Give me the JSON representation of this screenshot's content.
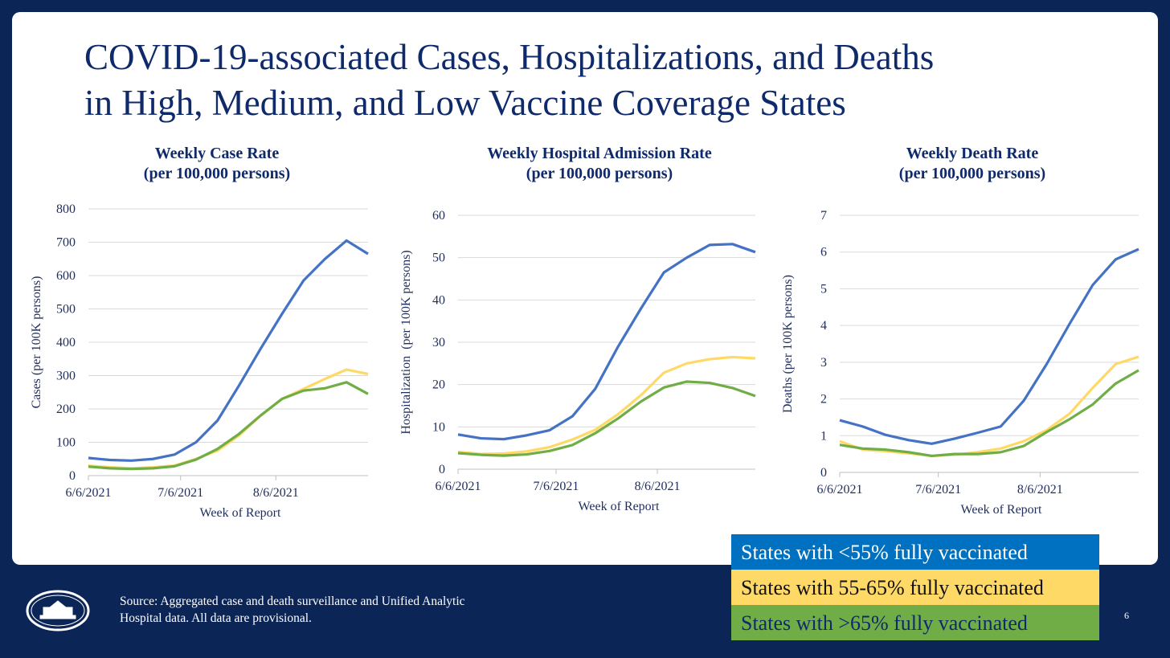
{
  "title": [
    "COVID-19-associated Cases, Hospitalizations, and Deaths",
    "in High, Medium, and Low Vaccine Coverage States"
  ],
  "source": [
    "Source: Aggregated case and death surveillance and Unified Analytic",
    "Hospital data. All data are provisional."
  ],
  "page_number": "6",
  "legend_colors": [
    "#0070c0",
    "#ffd966",
    "#70ad47"
  ],
  "chart_data": [
    {
      "type": "line",
      "title": [
        "Weekly Case Rate",
        "(per 100,000 persons)"
      ],
      "x_label": "Week of Report",
      "y_label": "Cases (per 100K persons)",
      "x": [
        "2021-06-06",
        "2021-06-13",
        "2021-06-20",
        "2021-06-27",
        "2021-07-04",
        "2021-07-11",
        "2021-07-18",
        "2021-07-25",
        "2021-08-01",
        "2021-08-08",
        "2021-08-15",
        "2021-08-22",
        "2021-08-29",
        "2021-09-05"
      ],
      "xlim": [
        "2021-06-06",
        "2021-09-05"
      ],
      "xticks": [
        {
          "value": "2021-06-06",
          "label": "6/6/2021"
        },
        {
          "value": "2021-07-06",
          "label": "7/6/2021"
        },
        {
          "value": "2021-08-06",
          "label": "8/6/2021"
        }
      ],
      "ylim": [
        0,
        800
      ],
      "yticks": [
        0,
        100,
        200,
        300,
        400,
        500,
        600,
        700,
        800
      ],
      "grid": true,
      "series": [
        {
          "name": "States with <55% fully vaccinated",
          "color": "#4472c4",
          "values": [
            53,
            47,
            45,
            50,
            63,
            100,
            165,
            270,
            380,
            485,
            585,
            650,
            705,
            665
          ]
        },
        {
          "name": "States with 55-65% fully vaccinated",
          "color": "#ffd966",
          "values": [
            30,
            25,
            22,
            25,
            30,
            50,
            75,
            120,
            180,
            230,
            260,
            290,
            318,
            305
          ]
        },
        {
          "name": "States with >65% fully vaccinated",
          "color": "#70ad47",
          "values": [
            27,
            22,
            20,
            22,
            28,
            48,
            80,
            125,
            180,
            230,
            255,
            262,
            280,
            245
          ]
        }
      ]
    },
    {
      "type": "line",
      "title": [
        "Weekly Hospital Admission Rate",
        "(per 100,000 persons)"
      ],
      "x_label": "Week of Report",
      "y_label": "Hospitalization  (per 100K persons)",
      "x": [
        "2021-06-06",
        "2021-06-13",
        "2021-06-20",
        "2021-06-27",
        "2021-07-04",
        "2021-07-11",
        "2021-07-18",
        "2021-07-25",
        "2021-08-01",
        "2021-08-08",
        "2021-08-15",
        "2021-08-22",
        "2021-08-29",
        "2021-09-05"
      ],
      "xlim": [
        "2021-06-06",
        "2021-09-05"
      ],
      "xticks": [
        {
          "value": "2021-06-06",
          "label": "6/6/2021"
        },
        {
          "value": "2021-07-06",
          "label": "7/6/2021"
        },
        {
          "value": "2021-08-06",
          "label": "8/6/2021"
        }
      ],
      "ylim": [
        0,
        60
      ],
      "yticks": [
        0,
        10,
        20,
        30,
        40,
        50,
        60
      ],
      "grid": true,
      "series": [
        {
          "name": "States with <55% fully vaccinated",
          "color": "#4472c4",
          "values": [
            8.2,
            7.3,
            7.1,
            8,
            9.2,
            12.5,
            19,
            29,
            38,
            46.5,
            50,
            53,
            53.2,
            51.3
          ]
        },
        {
          "name": "States with 55-65% fully vaccinated",
          "color": "#ffd966",
          "values": [
            4.1,
            3.6,
            3.7,
            4.2,
            5.2,
            7,
            9.3,
            13,
            17.5,
            22.8,
            25,
            26,
            26.5,
            26.2
          ]
        },
        {
          "name": "States with >65% fully vaccinated",
          "color": "#70ad47",
          "values": [
            3.8,
            3.4,
            3.2,
            3.5,
            4.3,
            5.7,
            8.5,
            12,
            16,
            19.3,
            20.7,
            20.4,
            19.2,
            17.3
          ]
        }
      ]
    },
    {
      "type": "line",
      "title": [
        "Weekly Death Rate",
        "(per 100,000 persons)"
      ],
      "x_label": "Week of Report",
      "y_label": "Deaths (per 100K persons)",
      "x": [
        "2021-06-06",
        "2021-06-13",
        "2021-06-20",
        "2021-06-27",
        "2021-07-04",
        "2021-07-11",
        "2021-07-18",
        "2021-07-25",
        "2021-08-01",
        "2021-08-08",
        "2021-08-15",
        "2021-08-22",
        "2021-08-29",
        "2021-09-05"
      ],
      "xlim": [
        "2021-06-06",
        "2021-09-05"
      ],
      "xticks": [
        {
          "value": "2021-06-06",
          "label": "6/6/2021"
        },
        {
          "value": "2021-07-06",
          "label": "7/6/2021"
        },
        {
          "value": "2021-08-06",
          "label": "8/6/2021"
        }
      ],
      "ylim": [
        0,
        7
      ],
      "yticks": [
        0,
        1,
        2,
        3,
        4,
        5,
        6,
        7
      ],
      "grid": true,
      "series": [
        {
          "name": "States with <55% fully vaccinated",
          "color": "#4472c4",
          "values": [
            1.42,
            1.25,
            1.02,
            0.88,
            0.78,
            0.92,
            1.08,
            1.25,
            1.95,
            2.95,
            4.05,
            5.1,
            5.8,
            6.08
          ]
        },
        {
          "name": "States with 55-65% fully vaccinated",
          "color": "#ffd966",
          "values": [
            0.85,
            0.62,
            0.58,
            0.52,
            0.45,
            0.48,
            0.55,
            0.65,
            0.85,
            1.15,
            1.6,
            2.3,
            2.95,
            3.15
          ]
        },
        {
          "name": "States with >65% fully vaccinated",
          "color": "#70ad47",
          "values": [
            0.75,
            0.65,
            0.62,
            0.55,
            0.45,
            0.5,
            0.5,
            0.55,
            0.72,
            1.1,
            1.45,
            1.85,
            2.42,
            2.78
          ]
        }
      ]
    }
  ]
}
